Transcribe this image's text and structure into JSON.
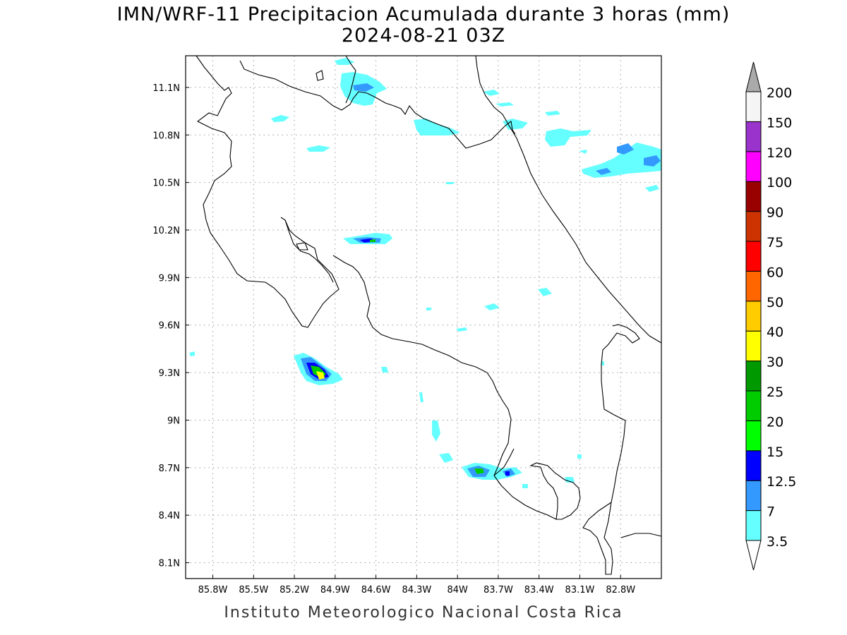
{
  "title_line1": "IMN/WRF-11 Precipitacion Acumulada durante 3 horas (mm)",
  "title_line2": "2024-08-21 03Z",
  "footer": "Instituto Meteorologico Nacional Costa Rica",
  "map": {
    "lon_range": [
      -86.0,
      -82.5
    ],
    "lat_range": [
      8.0,
      11.3
    ],
    "lon_ticks": [
      {
        "value": -85.8,
        "label": "85.8W"
      },
      {
        "value": -85.5,
        "label": "85.5W"
      },
      {
        "value": -85.2,
        "label": "85.2W"
      },
      {
        "value": -84.9,
        "label": "84.9W"
      },
      {
        "value": -84.6,
        "label": "84.6W"
      },
      {
        "value": -84.3,
        "label": "84.3W"
      },
      {
        "value": -84.0,
        "label": "84W"
      },
      {
        "value": -83.7,
        "label": "83.7W"
      },
      {
        "value": -83.4,
        "label": "83.4W"
      },
      {
        "value": -83.1,
        "label": "83.1W"
      },
      {
        "value": -82.8,
        "label": "82.8W"
      }
    ],
    "lat_ticks": [
      {
        "value": 11.1,
        "label": "11.1N"
      },
      {
        "value": 10.8,
        "label": "10.8N"
      },
      {
        "value": 10.5,
        "label": "10.5N"
      },
      {
        "value": 10.2,
        "label": "10.2N"
      },
      {
        "value": 9.9,
        "label": "9.9N"
      },
      {
        "value": 9.6,
        "label": "9.6N"
      },
      {
        "value": 9.3,
        "label": "9.3N"
      },
      {
        "value": 9.0,
        "label": "9N"
      },
      {
        "value": 8.7,
        "label": "8.7N"
      },
      {
        "value": 8.4,
        "label": "8.4N"
      },
      {
        "value": 8.1,
        "label": "8.1N"
      }
    ]
  },
  "colorbar": {
    "levels": [
      {
        "label": "3.5",
        "color": "#66ffff"
      },
      {
        "label": "7",
        "color": "#3399ff"
      },
      {
        "label": "12.5",
        "color": "#0000ff"
      },
      {
        "label": "15",
        "color": "#00ff00"
      },
      {
        "label": "20",
        "color": "#00cc00"
      },
      {
        "label": "25",
        "color": "#009900"
      },
      {
        "label": "30",
        "color": "#ffff00"
      },
      {
        "label": "40",
        "color": "#ffcc00"
      },
      {
        "label": "50",
        "color": "#ff6600"
      },
      {
        "label": "60",
        "color": "#ff0000"
      },
      {
        "label": "75",
        "color": "#cc3300"
      },
      {
        "label": "90",
        "color": "#990000"
      },
      {
        "label": "100",
        "color": "#ff00ff"
      },
      {
        "label": "120",
        "color": "#9933cc"
      },
      {
        "label": "150",
        "color": "#f5f5f5"
      },
      {
        "label": "200",
        "color": "#aaaaaa"
      }
    ]
  }
}
